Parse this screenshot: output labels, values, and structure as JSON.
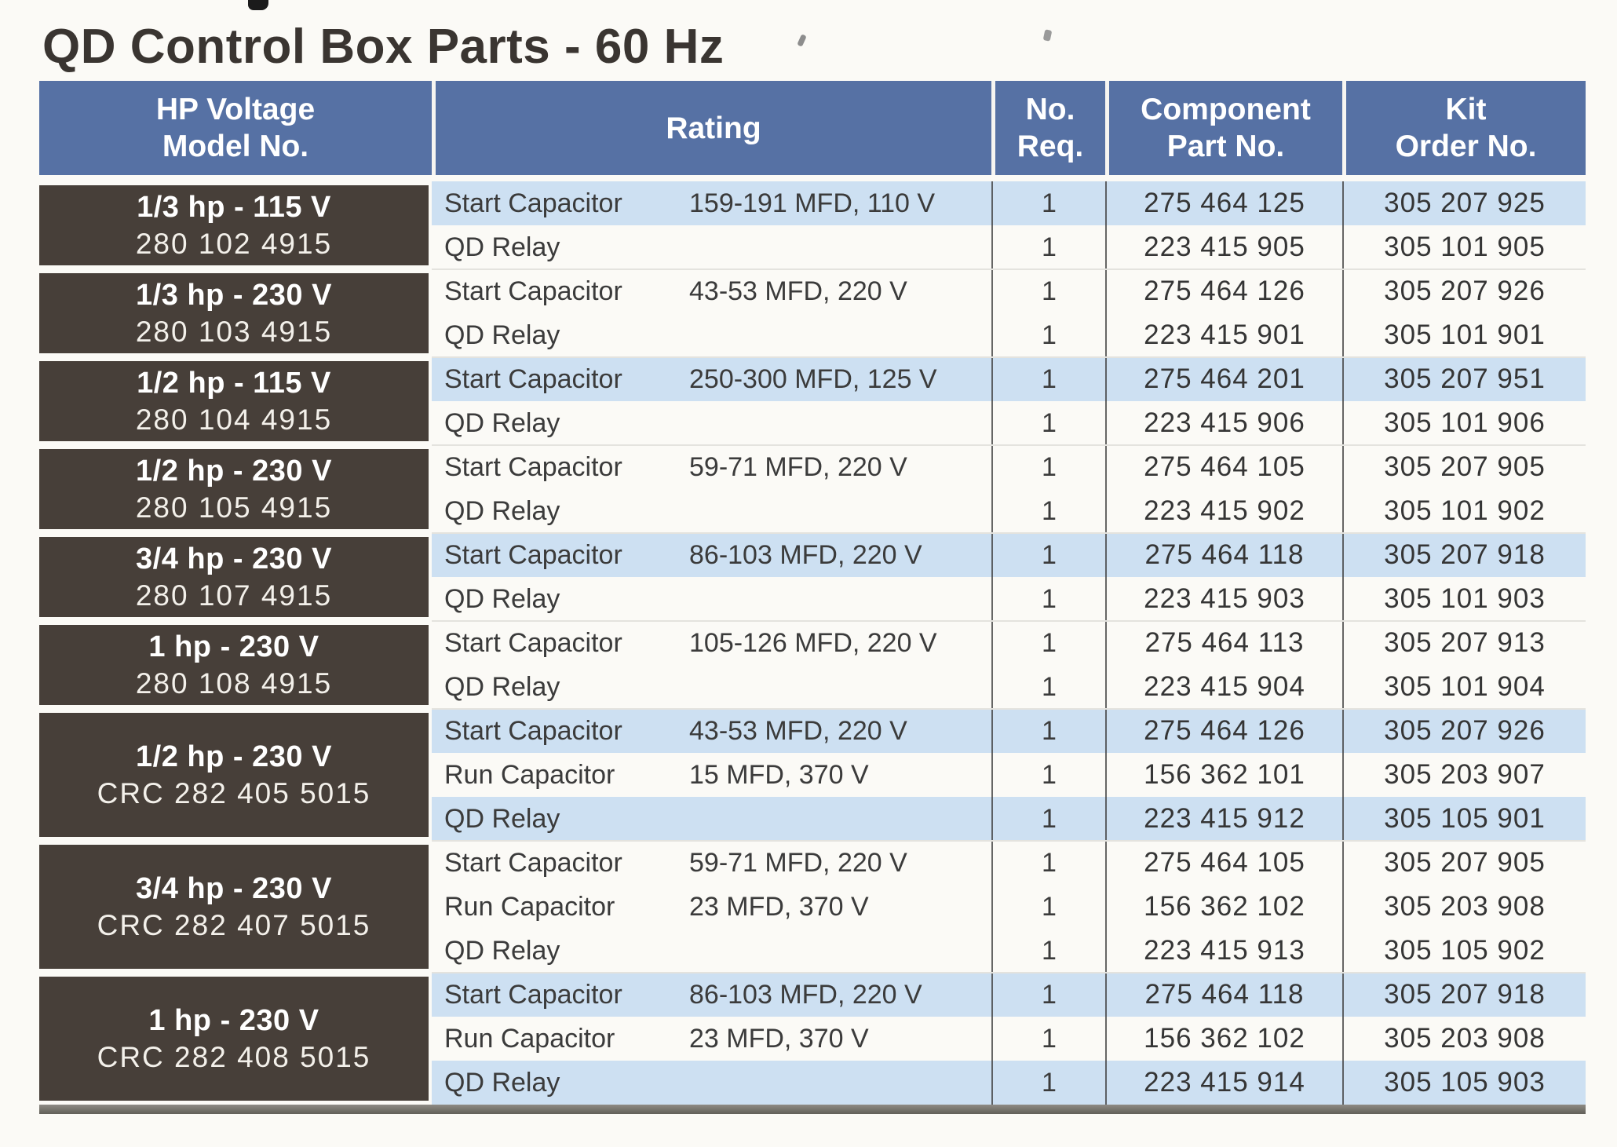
{
  "title": "QD Control Box Parts - 60 Hz",
  "colors": {
    "page-bg": "#fbfaf6",
    "title-color": "#3a3531",
    "header-bg": "#5671a4",
    "header-text": "#ffffff",
    "model-bg": "#473f39",
    "row-shade": "#cde0f2",
    "data-text": "#3b3b3b",
    "divider": "#4c4c4c"
  },
  "table": {
    "columns": [
      {
        "id": "model",
        "lines": [
          "HP Voltage",
          "Model No."
        ]
      },
      {
        "id": "rating",
        "lines": [
          "Rating"
        ]
      },
      {
        "id": "req",
        "lines": [
          "No.",
          "Req."
        ]
      },
      {
        "id": "part",
        "lines": [
          "Component",
          "Part No."
        ]
      },
      {
        "id": "kit",
        "lines": [
          "Kit",
          "Order No."
        ]
      }
    ],
    "groups": [
      {
        "model_line1": "1/3 hp - 115 V",
        "model_line2": "280 102 4915",
        "rows": [
          {
            "component": "Start Capacitor",
            "rating": "159-191 MFD, 110 V",
            "req": "1",
            "part": "275 464 125",
            "kit": "305 207 925",
            "shaded": true
          },
          {
            "component": "QD Relay",
            "rating": "",
            "req": "1",
            "part": "223 415 905",
            "kit": "305 101 905",
            "shaded": false
          }
        ]
      },
      {
        "model_line1": "1/3 hp - 230 V",
        "model_line2": "280 103 4915",
        "rows": [
          {
            "component": "Start Capacitor",
            "rating": "43-53 MFD, 220 V",
            "req": "1",
            "part": "275 464 126",
            "kit": "305 207 926",
            "shaded": false
          },
          {
            "component": "QD Relay",
            "rating": "",
            "req": "1",
            "part": "223 415 901",
            "kit": "305 101 901",
            "shaded": false
          }
        ]
      },
      {
        "model_line1": "1/2 hp - 115 V",
        "model_line2": "280 104 4915",
        "rows": [
          {
            "component": "Start Capacitor",
            "rating": "250-300 MFD, 125 V",
            "req": "1",
            "part": "275 464 201",
            "kit": "305 207 951",
            "shaded": true
          },
          {
            "component": "QD Relay",
            "rating": "",
            "req": "1",
            "part": "223 415 906",
            "kit": "305 101 906",
            "shaded": false
          }
        ]
      },
      {
        "model_line1": "1/2 hp - 230 V",
        "model_line2": "280 105 4915",
        "rows": [
          {
            "component": "Start Capacitor",
            "rating": "59-71 MFD, 220 V",
            "req": "1",
            "part": "275 464 105",
            "kit": "305 207 905",
            "shaded": false
          },
          {
            "component": "QD Relay",
            "rating": "",
            "req": "1",
            "part": "223 415 902",
            "kit": "305 101 902",
            "shaded": false
          }
        ]
      },
      {
        "model_line1": "3/4 hp - 230 V",
        "model_line2": "280 107 4915",
        "rows": [
          {
            "component": "Start Capacitor",
            "rating": "86-103 MFD, 220 V",
            "req": "1",
            "part": "275 464 118",
            "kit": "305 207 918",
            "shaded": true
          },
          {
            "component": "QD Relay",
            "rating": "",
            "req": "1",
            "part": "223 415 903",
            "kit": "305 101 903",
            "shaded": false
          }
        ]
      },
      {
        "model_line1": "1 hp - 230 V",
        "model_line2": "280 108 4915",
        "rows": [
          {
            "component": "Start Capacitor",
            "rating": "105-126 MFD, 220 V",
            "req": "1",
            "part": "275 464 113",
            "kit": "305 207 913",
            "shaded": false
          },
          {
            "component": "QD Relay",
            "rating": "",
            "req": "1",
            "part": "223 415 904",
            "kit": "305 101 904",
            "shaded": false
          }
        ]
      },
      {
        "model_line1": "1/2 hp - 230 V",
        "model_line2": "CRC 282 405 5015",
        "rows": [
          {
            "component": "Start Capacitor",
            "rating": "43-53 MFD, 220 V",
            "req": "1",
            "part": "275 464 126",
            "kit": "305 207 926",
            "shaded": true
          },
          {
            "component": "Run Capacitor",
            "rating": "15 MFD, 370 V",
            "req": "1",
            "part": "156 362 101",
            "kit": "305 203 907",
            "shaded": false
          },
          {
            "component": "QD Relay",
            "rating": "",
            "req": "1",
            "part": "223 415 912",
            "kit": "305 105 901",
            "shaded": true
          }
        ]
      },
      {
        "model_line1": "3/4 hp - 230 V",
        "model_line2": "CRC 282 407 5015",
        "rows": [
          {
            "component": "Start Capacitor",
            "rating": "59-71 MFD, 220 V",
            "req": "1",
            "part": "275 464 105",
            "kit": "305 207 905",
            "shaded": false
          },
          {
            "component": "Run Capacitor",
            "rating": "23 MFD, 370 V",
            "req": "1",
            "part": "156 362 102",
            "kit": "305 203 908",
            "shaded": false
          },
          {
            "component": "QD Relay",
            "rating": "",
            "req": "1",
            "part": "223 415 913",
            "kit": "305 105 902",
            "shaded": false
          }
        ]
      },
      {
        "model_line1": "1 hp - 230 V",
        "model_line2": "CRC 282 408 5015",
        "rows": [
          {
            "component": "Start Capacitor",
            "rating": "86-103 MFD, 220 V",
            "req": "1",
            "part": "275 464 118",
            "kit": "305 207 918",
            "shaded": true
          },
          {
            "component": "Run Capacitor",
            "rating": "23 MFD, 370 V",
            "req": "1",
            "part": "156 362 102",
            "kit": "305 203 908",
            "shaded": false
          },
          {
            "component": "QD Relay",
            "rating": "",
            "req": "1",
            "part": "223 415 914",
            "kit": "305 105 903",
            "shaded": true
          }
        ]
      }
    ]
  }
}
